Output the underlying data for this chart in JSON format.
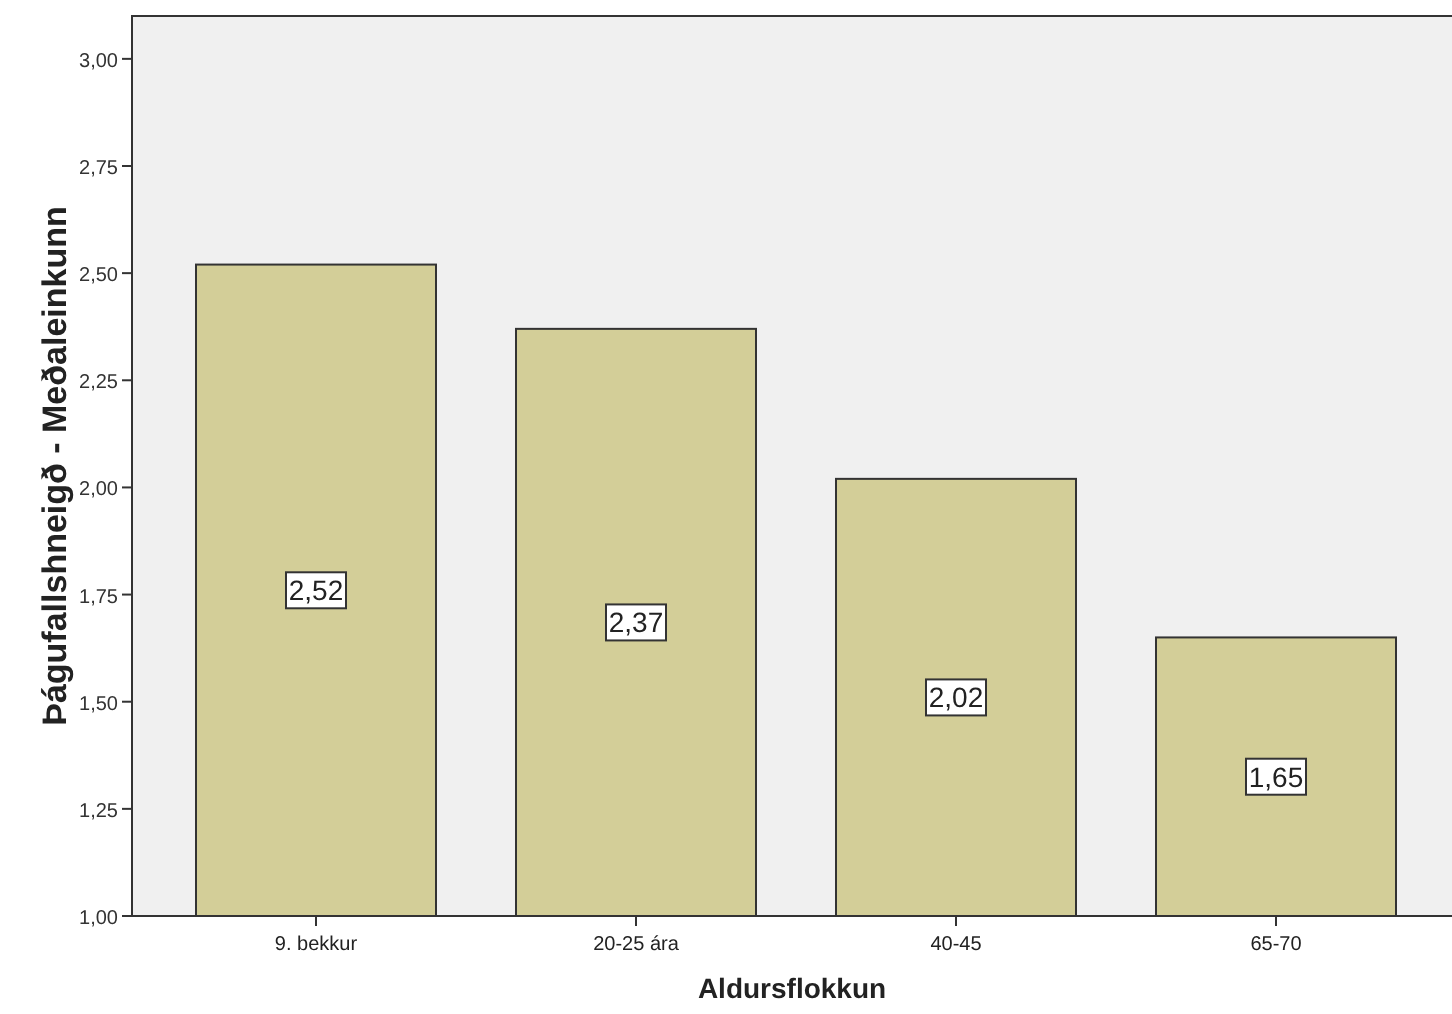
{
  "chart_data": {
    "type": "bar",
    "xlabel": "Aldursflokkun",
    "ylabel": "Þágufallshneigð - Meðaleinkunn",
    "categories": [
      "9. bekkur",
      "20-25 ára",
      "40-45",
      "65-70"
    ],
    "values": [
      2.52,
      2.37,
      2.02,
      1.65
    ],
    "value_labels": [
      "2,52",
      "2,37",
      "2,02",
      "1,65"
    ],
    "color": "#d3ce98",
    "ylim": [
      1,
      3.1
    ],
    "yticks": [
      {
        "value": 1,
        "label": "1,00"
      },
      {
        "value": 1.25,
        "label": "1,25"
      },
      {
        "value": 1.5,
        "label": "1,50"
      },
      {
        "value": 1.75,
        "label": "1,75"
      },
      {
        "value": 2,
        "label": "2,00"
      },
      {
        "value": 2.25,
        "label": "2,25"
      },
      {
        "value": 2.5,
        "label": "2,50"
      },
      {
        "value": 2.75,
        "label": "2,75"
      },
      {
        "value": 3,
        "label": "3,00"
      }
    ],
    "grid": false
  }
}
